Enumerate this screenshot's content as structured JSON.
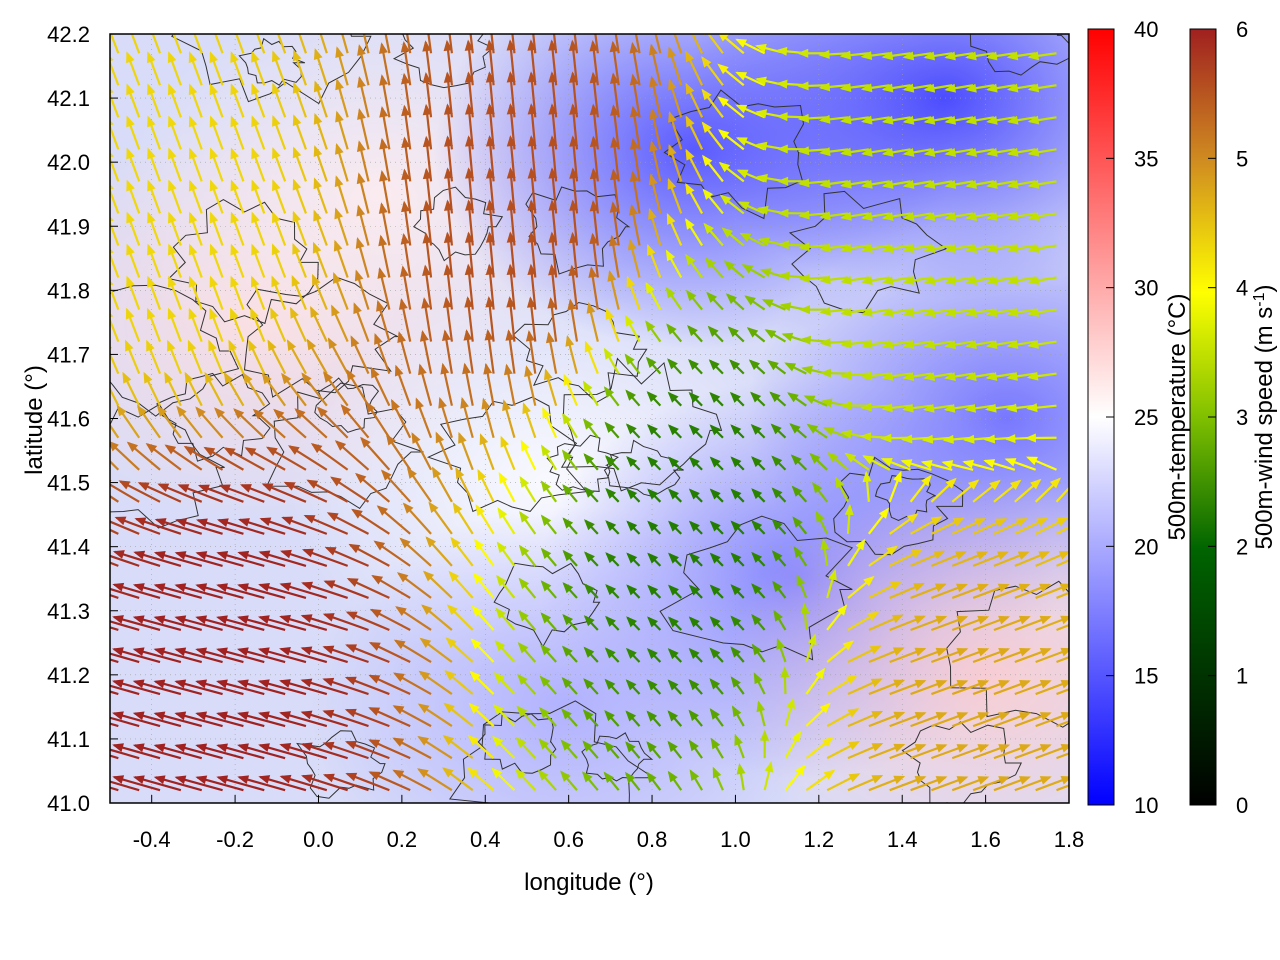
{
  "chart_data": {
    "type": "vector-field",
    "xlabel": "longitude (°)",
    "ylabel": "latitude (°)",
    "xlim": [
      -0.5,
      1.8
    ],
    "ylim": [
      41.0,
      42.2
    ],
    "x_ticks": [
      -0.4,
      -0.2,
      0.0,
      0.2,
      0.4,
      0.6,
      0.8,
      1.0,
      1.2,
      1.4,
      1.6,
      1.8
    ],
    "x_tick_labels": [
      "-0.4",
      "-0.2",
      "0.0",
      "0.2",
      "0.4",
      "0.6",
      "0.8",
      "1.0",
      "1.2",
      "1.4",
      "1.6",
      "1.8"
    ],
    "y_ticks": [
      41.0,
      41.1,
      41.2,
      41.3,
      41.4,
      41.5,
      41.6,
      41.7,
      41.8,
      41.9,
      42.0,
      42.1,
      42.2
    ],
    "y_tick_labels": [
      "41.0",
      "41.1",
      "41.2",
      "41.3",
      "41.4",
      "41.5",
      "41.6",
      "41.7",
      "41.8",
      "41.9",
      "42.0",
      "42.1",
      "42.2"
    ],
    "grid": true,
    "background_field": {
      "name": "500m-temperature",
      "colorbar_label": "500m-temperature (°C)",
      "range": [
        10,
        40
      ],
      "ticks": [
        "10",
        "15",
        "20",
        "25",
        "30",
        "35",
        "40"
      ],
      "colors": [
        "#0000ff",
        "#ffffff",
        "#ff0000"
      ],
      "regions": [
        {
          "lon": -0.15,
          "lat": 41.75,
          "temperature": 27
        },
        {
          "lon": 0.15,
          "lat": 41.95,
          "temperature": 26
        },
        {
          "lon": 0.55,
          "lat": 41.5,
          "temperature": 25
        },
        {
          "lon": 1.5,
          "lat": 42.1,
          "temperature": 13
        },
        {
          "lon": 0.9,
          "lat": 42.02,
          "temperature": 14
        },
        {
          "lon": 1.15,
          "lat": 41.35,
          "temperature": 17
        },
        {
          "lon": 1.65,
          "lat": 41.6,
          "temperature": 16
        },
        {
          "lon": 0.6,
          "lat": 41.15,
          "temperature": 20
        },
        {
          "lon": 1.6,
          "lat": 41.2,
          "temperature": 28
        }
      ]
    },
    "vector_field": {
      "name": "500m-wind speed",
      "colorbar_label": "500m-wind speed (m s-1)",
      "range": [
        0,
        6
      ],
      "ticks": [
        "0",
        "1",
        "2",
        "3",
        "4",
        "5",
        "6"
      ],
      "colors": [
        "#000000",
        "#006400",
        "#80c000",
        "#ffff00",
        "#d08c20",
        "#a02020"
      ],
      "flow_regimes": [
        {
          "region": "southwest",
          "direction_deg": 165,
          "speed": 6
        },
        {
          "region": "north-central",
          "direction_deg": 95,
          "speed": 5.5
        },
        {
          "region": "west",
          "direction_deg": 110,
          "speed": 4
        },
        {
          "region": "center",
          "direction_deg": 135,
          "speed": 1.5
        },
        {
          "region": "northeast",
          "direction_deg": 190,
          "speed": 3
        },
        {
          "region": "southeast",
          "direction_deg": 20,
          "speed": 4.5
        }
      ]
    }
  }
}
